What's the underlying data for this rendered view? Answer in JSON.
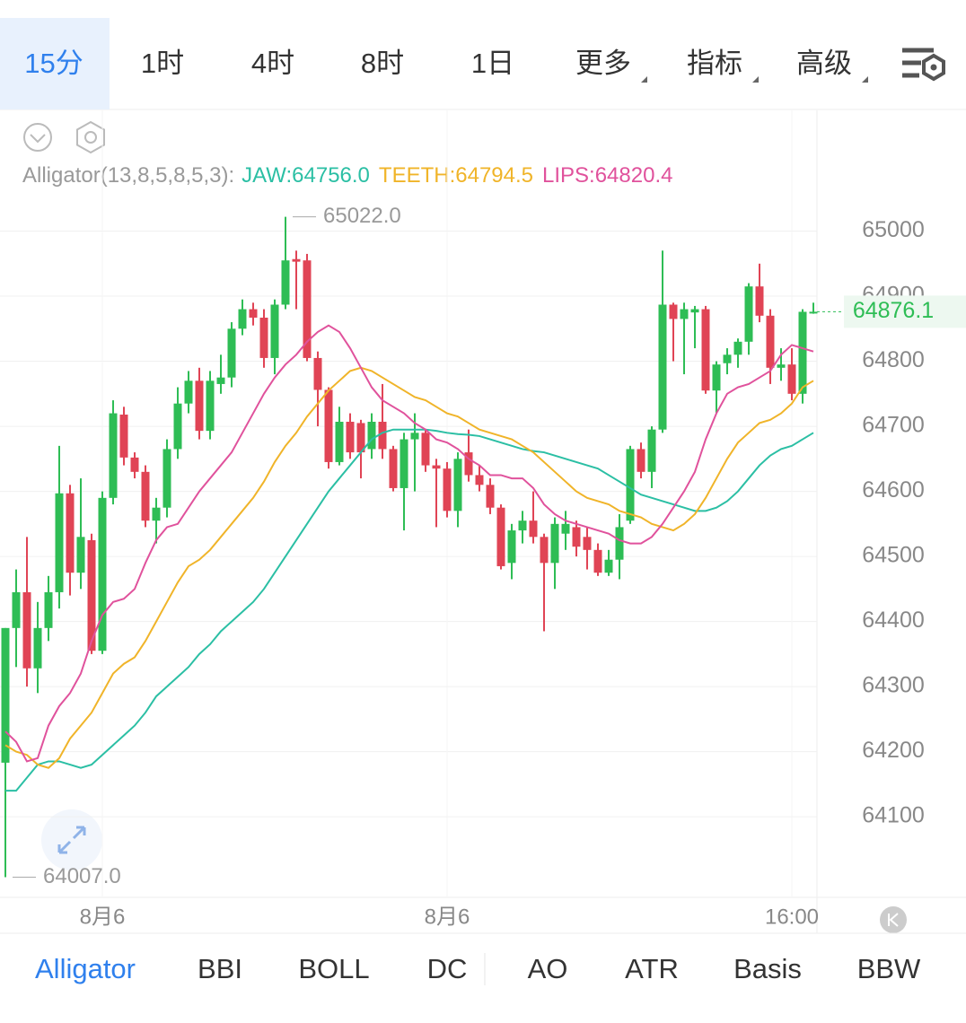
{
  "header": {
    "tabs": [
      "15分",
      "1时",
      "4时",
      "8时",
      "1日",
      "更多",
      "指标",
      "高级"
    ],
    "active": 0
  },
  "chart_data": {
    "type": "candlestick",
    "indicator": "Alligator(13,8,5,8,5,3):",
    "up_color": "#2ebd55",
    "down_color": "#e04455",
    "categories": [
      null,
      null,
      null,
      null,
      null,
      null,
      null,
      null,
      null,
      "8月6",
      null,
      null,
      null,
      null,
      null,
      null,
      null,
      null,
      null,
      null,
      null,
      null,
      null,
      null,
      null,
      null,
      null,
      null,
      null,
      null,
      null,
      null,
      null,
      null,
      null,
      null,
      null,
      null,
      null,
      null,
      null,
      "8月6",
      null,
      null,
      null,
      null,
      null,
      null,
      null,
      null,
      null,
      null,
      null,
      null,
      null,
      null,
      null,
      null,
      null,
      null,
      null,
      null,
      null,
      null,
      null,
      null,
      null,
      null,
      null,
      null,
      null,
      null,
      null,
      "16:00",
      null,
      null
    ],
    "open": [
      64183,
      64390,
      64445,
      64328,
      64390,
      64445,
      64597,
      64475,
      64525,
      64355,
      64590,
      64718,
      64652,
      64630,
      64555,
      64575,
      64665,
      64735,
      64770,
      64693,
      64765,
      64775,
      64850,
      64880,
      64867,
      64805,
      64887,
      64957,
      64955,
      64805,
      64756,
      64645,
      64707,
      64705,
      64665,
      64707,
      64665,
      64605,
      64680,
      64690,
      64640,
      64635,
      64570,
      64660,
      64625,
      64610,
      64575,
      64490,
      64540,
      64555,
      64530,
      64490,
      64535,
      64545,
      64530,
      64510,
      64475,
      64495,
      64555,
      64665,
      64630,
      64695,
      64887,
      64865,
      64875,
      64880,
      64755,
      64797,
      64810,
      64830,
      64915,
      64870,
      64790,
      64795,
      64750,
      64875.5
    ],
    "high": [
      64390,
      64480,
      64530,
      64430,
      64470,
      64670,
      64610,
      64620,
      64535,
      64600,
      64740,
      64730,
      64660,
      64640,
      64590,
      64680,
      64760,
      64785,
      64790,
      64785,
      64810,
      64860,
      64895,
      64890,
      64880,
      64895,
      65022,
      64970,
      64965,
      64815,
      64760,
      64730,
      64720,
      64710,
      64720,
      64765,
      64670,
      64690,
      64720,
      64695,
      64650,
      64645,
      64660,
      64695,
      64640,
      64620,
      64580,
      64550,
      64570,
      64600,
      64535,
      64560,
      64570,
      64555,
      64545,
      64520,
      64510,
      64565,
      64670,
      64675,
      64700,
      64970,
      64890,
      64890,
      64885,
      64885,
      64800,
      64820,
      64835,
      64920,
      64950,
      64880,
      64820,
      64820,
      64880,
      64890
    ],
    "low": [
      64007,
      64330,
      64300,
      64290,
      64370,
      64420,
      64440,
      64450,
      64350,
      64350,
      64580,
      64640,
      64620,
      64545,
      64520,
      64560,
      64650,
      64720,
      64680,
      64680,
      64750,
      64760,
      64840,
      64855,
      64790,
      64780,
      64880,
      64880,
      64800,
      64700,
      64635,
      64640,
      64650,
      64620,
      64650,
      64650,
      64600,
      64540,
      64600,
      64630,
      64545,
      64560,
      64545,
      64615,
      64600,
      64565,
      64480,
      64465,
      64520,
      64520,
      64385,
      64450,
      64510,
      64500,
      64480,
      64470,
      64470,
      64465,
      64550,
      64620,
      64605,
      64690,
      64800,
      64780,
      64820,
      64750,
      64720,
      64780,
      64790,
      64810,
      64860,
      64765,
      64770,
      64740,
      64735,
      64873
    ],
    "close": [
      64390,
      64445,
      64328,
      64390,
      64445,
      64597,
      64475,
      64530,
      64355,
      64590,
      64720,
      64652,
      64630,
      64555,
      64575,
      64665,
      64735,
      64770,
      64693,
      64770,
      64775,
      64850,
      64880,
      64867,
      64805,
      64887,
      64955,
      64953,
      64805,
      64756,
      64645,
      64707,
      64660,
      64660,
      64707,
      64665,
      64605,
      64680,
      64690,
      64640,
      64635,
      64570,
      64650,
      64625,
      64610,
      64575,
      64485,
      64540,
      64555,
      64530,
      64490,
      64550,
      64550,
      64515,
      64510,
      64475,
      64495,
      64545,
      64665,
      64630,
      64695,
      64887,
      64865,
      64880,
      64880,
      64755,
      64795,
      64810,
      64830,
      64915,
      64870,
      64790,
      64795,
      64750,
      64876,
      64876.1
    ],
    "series": [
      {
        "name": "JAW:64756.0",
        "color": "#2bbfa4",
        "values": [
          64140,
          64140,
          64160,
          64180,
          64185,
          64185,
          64180,
          64175,
          64180,
          64195,
          64210,
          64225,
          64240,
          64260,
          64285,
          64300,
          64315,
          64330,
          64350,
          64365,
          64385,
          64400,
          64415,
          64430,
          64450,
          64475,
          64500,
          64525,
          64550,
          64575,
          64600,
          64620,
          64640,
          64660,
          64680,
          64690,
          64695,
          64695,
          64695,
          64695,
          64693,
          64690,
          64688,
          64687,
          64685,
          64680,
          64675,
          64670,
          64665,
          64662,
          64660,
          64655,
          64650,
          64645,
          64640,
          64635,
          64625,
          64615,
          64605,
          64595,
          64590,
          64585,
          64580,
          64575,
          64570,
          64570,
          64575,
          64585,
          64600,
          64620,
          64640,
          64655,
          64665,
          64670,
          64680,
          64690
        ]
      },
      {
        "name": "TEETH:64794.5",
        "color": "#f0b429",
        "values": [
          64210,
          64200,
          64195,
          64180,
          64175,
          64190,
          64220,
          64240,
          64260,
          64290,
          64320,
          64335,
          64345,
          64370,
          64400,
          64430,
          64460,
          64485,
          64495,
          64510,
          64530,
          64550,
          64570,
          64590,
          64615,
          64645,
          64670,
          64690,
          64715,
          64735,
          64755,
          64770,
          64785,
          64790,
          64785,
          64775,
          64765,
          64755,
          64745,
          64740,
          64730,
          64720,
          64715,
          64705,
          64695,
          64690,
          64685,
          64680,
          64670,
          64660,
          64645,
          64630,
          64615,
          64600,
          64590,
          64585,
          64580,
          64570,
          64565,
          64560,
          64550,
          64545,
          64540,
          64550,
          64565,
          64590,
          64620,
          64650,
          64675,
          64690,
          64705,
          64710,
          64720,
          64735,
          64760,
          64770
        ]
      },
      {
        "name": "LIPS:64820.4",
        "color": "#e0529c",
        "values": [
          64231,
          64215,
          64185,
          64190,
          64240,
          64270,
          64290,
          64320,
          64370,
          64410,
          64430,
          64435,
          64450,
          64490,
          64525,
          64545,
          64550,
          64575,
          64600,
          64620,
          64640,
          64660,
          64690,
          64720,
          64750,
          64775,
          64795,
          64810,
          64830,
          64845,
          64855,
          64845,
          64820,
          64790,
          64760,
          64740,
          64730,
          64720,
          64705,
          64695,
          64680,
          64675,
          64665,
          64650,
          64640,
          64625,
          64625,
          64620,
          64620,
          64605,
          64580,
          64565,
          64555,
          64550,
          64545,
          64540,
          64535,
          64525,
          64520,
          64520,
          64530,
          64550,
          64575,
          64600,
          64630,
          64680,
          64720,
          64750,
          64760,
          64765,
          64775,
          64785,
          64810,
          64825,
          64820,
          64815
        ]
      }
    ],
    "ylim": [
      63976,
      65038
    ],
    "yticks": [
      64100,
      64200,
      64300,
      64400,
      64500,
      64600,
      64700,
      64800,
      64900,
      65000
    ],
    "grid": true,
    "max_label": {
      "value": 65022,
      "label": "65022.0"
    },
    "min_label": {
      "value": 64007,
      "label": "64007.0"
    },
    "last_price": 64876.1
  },
  "footer": {
    "tabs": [
      "Alligator",
      "BBI",
      "BOLL",
      "DC",
      "AO",
      "ATR",
      "Basis",
      "BBW"
    ],
    "active": 0
  }
}
